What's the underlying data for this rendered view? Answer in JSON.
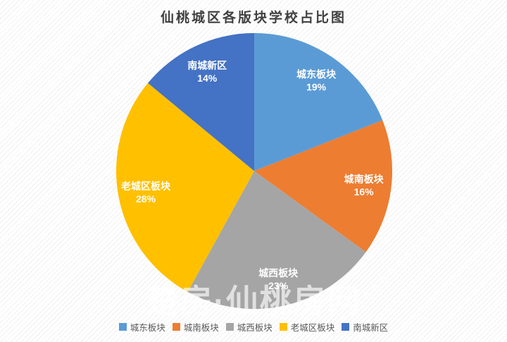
{
  "title": "仙桃城区各版块学校占比图",
  "watermark": "楚房·仙桃房网",
  "chart_data": {
    "type": "pie",
    "title": "仙桃城区各版块学校占比图",
    "categories": [
      "城东板块",
      "城南板块",
      "城西板块",
      "老城区板块",
      "南城新区"
    ],
    "values": [
      19,
      16,
      23,
      28,
      14
    ],
    "percent_labels": [
      "19%",
      "16%",
      "23%",
      "28%",
      "14%"
    ],
    "colors": [
      "#5B9BD5",
      "#ED7D31",
      "#A5A5A5",
      "#FFC000",
      "#4472C4"
    ],
    "start_angle_deg": 0,
    "direction": "clockwise",
    "legend_position": "bottom",
    "data_label_color": "#FFFFFF",
    "legend_text_color": "#595959"
  }
}
